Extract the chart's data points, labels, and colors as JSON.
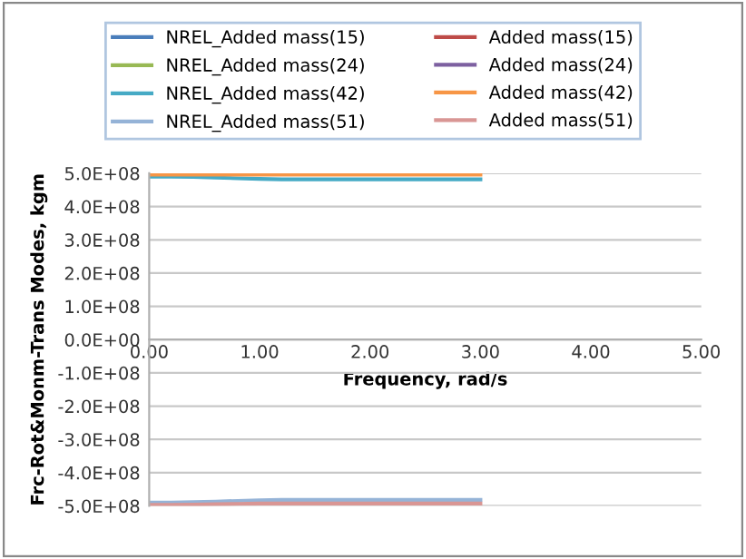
{
  "chart_data": {
    "type": "line",
    "xlabel": "Frequency, rad/s",
    "ylabel": "Frc-Rot&Monm-Trans Modes, kgm",
    "x": [
      0,
      0.2,
      0.4,
      0.6,
      0.8,
      1.0,
      1.2,
      1.5,
      2.0,
      2.5,
      3.0
    ],
    "series": [
      {
        "name": "NREL_Added mass(15)",
        "color": "#4a7ebb",
        "values": [
          null,
          null,
          null,
          null,
          null,
          null,
          null,
          null,
          null,
          null,
          null
        ]
      },
      {
        "name": "Added mass(15)",
        "color": "#be4b48",
        "values": [
          null,
          null,
          null,
          null,
          null,
          null,
          null,
          null,
          null,
          null,
          null
        ]
      },
      {
        "name": "NREL_Added mass(24)",
        "color": "#98b954",
        "values": [
          null,
          null,
          null,
          null,
          null,
          null,
          null,
          null,
          null,
          null,
          null
        ]
      },
      {
        "name": "Added mass(24)",
        "color": "#7d60a0",
        "values": [
          null,
          null,
          null,
          null,
          null,
          null,
          null,
          null,
          null,
          null,
          null
        ]
      },
      {
        "name": "NREL_Added mass(42)",
        "color": "#46aac5",
        "values": [
          490000000,
          490000000,
          489000000,
          487000000,
          485000000,
          483000000,
          482000000,
          482000000,
          482000000,
          482000000,
          482000000
        ]
      },
      {
        "name": "Added mass(42)",
        "color": "#f79646",
        "values": [
          496000000,
          496000000,
          496000000,
          496000000,
          496000000,
          496000000,
          496000000,
          496000000,
          496000000,
          496000000,
          496000000
        ]
      },
      {
        "name": "NREL_Added mass(51)",
        "color": "#95b3d7",
        "values": [
          -490000000,
          -490000000,
          -489000000,
          -487000000,
          -485000000,
          -483000000,
          -482000000,
          -482000000,
          -482000000,
          -482000000,
          -482000000
        ]
      },
      {
        "name": "Added mass(51)",
        "color": "#d99694",
        "values": [
          -497000000,
          -497000000,
          -496000000,
          -495000000,
          -494000000,
          -493000000,
          -493000000,
          -493000000,
          -493000000,
          -493000000,
          -493000000
        ]
      }
    ],
    "xlim": [
      0,
      5
    ],
    "xticks": [
      {
        "value": 0,
        "label": "0.00"
      },
      {
        "value": 1,
        "label": "1.00"
      },
      {
        "value": 2,
        "label": "2.00"
      },
      {
        "value": 3,
        "label": "3.00"
      },
      {
        "value": 4,
        "label": "4.00"
      },
      {
        "value": 5,
        "label": "5.00"
      }
    ],
    "ylim": [
      -500000000,
      500000000
    ],
    "yticks": [
      {
        "value": -500000000,
        "label": "-5.0E+08"
      },
      {
        "value": -400000000,
        "label": "-4.0E+08"
      },
      {
        "value": -300000000,
        "label": "-3.0E+08"
      },
      {
        "value": -200000000,
        "label": "-2.0E+08"
      },
      {
        "value": -100000000,
        "label": "-1.0E+08"
      },
      {
        "value": 0,
        "label": "0.0E+00"
      },
      {
        "value": 100000000,
        "label": "1.0E+08"
      },
      {
        "value": 200000000,
        "label": "2.0E+08"
      },
      {
        "value": 300000000,
        "label": "3.0E+08"
      },
      {
        "value": 400000000,
        "label": "4.0E+08"
      },
      {
        "value": 500000000,
        "label": "5.0E+08"
      }
    ],
    "grid": "y",
    "legend": "top",
    "marker": "none",
    "line_style": "solid"
  }
}
